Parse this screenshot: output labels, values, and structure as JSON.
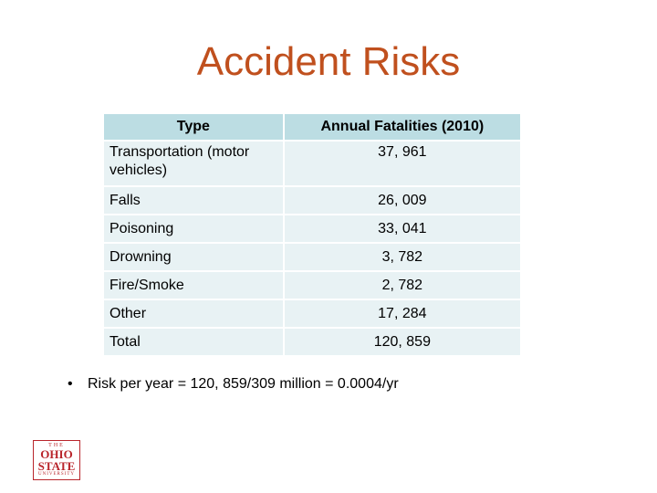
{
  "title": "Accident Risks",
  "table": {
    "headers": [
      "Type",
      "Annual Fatalities (2010)"
    ],
    "rows": [
      {
        "type": "Transportation (motor vehicles)",
        "value": "37, 961"
      },
      {
        "type": "Falls",
        "value": "26, 009"
      },
      {
        "type": "Poisoning",
        "value": "33, 041"
      },
      {
        "type": "Drowning",
        "value": "3, 782"
      },
      {
        "type": "Fire/Smoke",
        "value": "2, 782"
      },
      {
        "type": "Other",
        "value": "17, 284"
      },
      {
        "type": "Total",
        "value": "120, 859"
      }
    ]
  },
  "bullet": {
    "symbol": "•",
    "text": "Risk per year = 120, 859/309 million =  0.0004/yr"
  },
  "logo": {
    "line1": "THE",
    "line2": "OHIO",
    "line3": "STATE",
    "line4": "UNIVERSITY",
    "color": "#b9252b"
  },
  "colors": {
    "title": "#c0501e",
    "header_bg": "#bcdde3",
    "row_bg": "#e8f2f4"
  }
}
